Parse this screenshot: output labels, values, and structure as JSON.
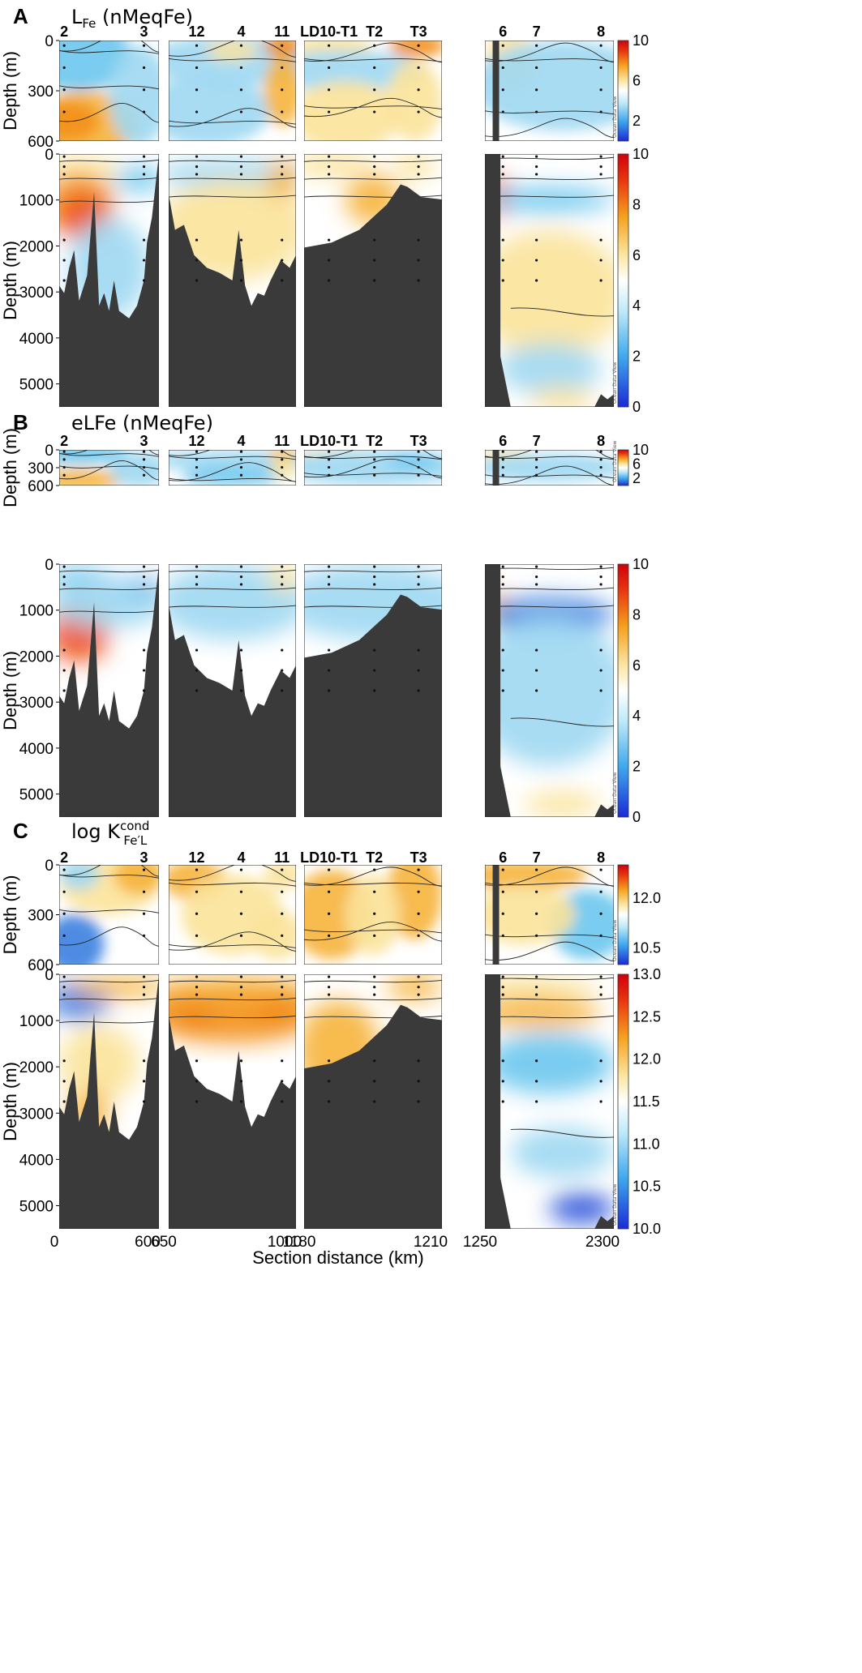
{
  "figure": {
    "xlabel": "Section distance (km)",
    "depth_label": "Depth (m)",
    "odv_watermark": "Ocean Data View",
    "basins": [
      {
        "stations": [
          "2",
          "3"
        ],
        "xrange": [
          0,
          600
        ],
        "xticks": [
          "0",
          "600"
        ]
      },
      {
        "stations": [
          "12",
          "4",
          "11"
        ],
        "xrange": [
          650,
          1000
        ],
        "xticks": [
          "650",
          "1000"
        ]
      },
      {
        "stations": [
          "LD10-T1",
          "T2",
          "T3"
        ],
        "xrange": [
          1180,
          1210
        ],
        "xticks": [
          "1180",
          "1210"
        ]
      },
      {
        "stations": [
          "6",
          "7",
          "8"
        ],
        "xrange": [
          1250,
          2300
        ],
        "xticks": [
          "1250",
          "2300"
        ]
      }
    ]
  },
  "chart_data": [
    {
      "type": "heatmap",
      "panel": "A",
      "title": "L",
      "title_sub": "Fe",
      "title_unit": "(nMeqFe)",
      "upper": {
        "ylim": [
          0,
          600
        ],
        "yticks": [
          0,
          300,
          600
        ],
        "colorbar": {
          "min": 0,
          "max": 10,
          "ticks": [
            2,
            6,
            10
          ]
        }
      },
      "lower": {
        "ylim": [
          0,
          5500
        ],
        "yticks": [
          0,
          1000,
          2000,
          3000,
          4000,
          5000
        ],
        "colorbar": {
          "min": 0,
          "max": 10,
          "ticks": [
            0,
            2,
            4,
            6,
            8,
            10
          ]
        }
      }
    },
    {
      "type": "heatmap",
      "panel": "B",
      "title": "eLFe",
      "title_unit": "(nMeqFe)",
      "upper": {
        "ylim": [
          0,
          600
        ],
        "yticks": [
          0,
          300,
          600
        ],
        "colorbar": {
          "min": 0,
          "max": 10,
          "ticks": [
            2,
            6,
            10
          ]
        }
      },
      "lower": {
        "ylim": [
          0,
          5500
        ],
        "yticks": [
          0,
          1000,
          2000,
          3000,
          4000,
          5000
        ],
        "colorbar": {
          "min": 0,
          "max": 10,
          "ticks": [
            0,
            2,
            4,
            6,
            8,
            10
          ]
        }
      }
    },
    {
      "type": "heatmap",
      "panel": "C",
      "title": "log K",
      "title_sup": "cond",
      "title_sub": "Fe′L",
      "upper": {
        "ylim": [
          0,
          600
        ],
        "yticks": [
          0,
          300,
          600
        ],
        "colorbar": {
          "min": 10.0,
          "max": 13.0,
          "ticks": [
            10.5,
            12.0
          ]
        }
      },
      "lower": {
        "ylim": [
          0,
          5500
        ],
        "yticks": [
          0,
          1000,
          2000,
          3000,
          4000,
          5000
        ],
        "colorbar": {
          "min": 10.0,
          "max": 13.0,
          "ticks": [
            10.0,
            10.5,
            11.0,
            11.5,
            12.0,
            12.5,
            13.0
          ]
        }
      }
    }
  ],
  "colors": {
    "bathymetry": "#3a3a3a",
    "cbar_stops": [
      "#1a2bd6",
      "#3fa9ee",
      "#bfeaf8",
      "#ffffff",
      "#fbe6a2",
      "#f6a21e",
      "#e8340e",
      "#d0000b"
    ]
  }
}
